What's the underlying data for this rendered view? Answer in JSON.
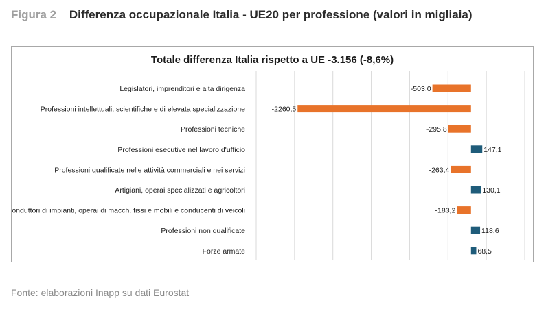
{
  "figure": {
    "label": "Figura 2",
    "title": "Differenza occupazionale Italia - UE20 per professione (valori in migliaia)"
  },
  "source": "Fonte: elaborazioni Inapp su dati Eurostat",
  "colors": {
    "negative": "#E8732A",
    "positive": "#1F5C7A",
    "grid": "#d9d9d9",
    "border": "#a8a8a8"
  },
  "chart_data": {
    "type": "bar",
    "orientation": "horizontal",
    "title": "Totale differenza Italia rispetto a UE -3.156 (-8,6%)",
    "categories": [
      "Legislatori, imprenditori e alta dirigenza",
      "Professioni intellettuali, scientifiche e di elevata specializzazione",
      "Professioni tecniche",
      "Professioni esecutive nel lavoro d'ufficio",
      "Professioni qualificate nelle attività commerciali e nei servizi",
      "Artigiani, operai specializzati e agricoltori",
      "Conduttori di impianti, operai di macch. fissi e mobili e conducenti di veicoli",
      "Professioni non qualificate",
      "Forze armate"
    ],
    "values": [
      -503.0,
      -2260.5,
      -295.8,
      147.1,
      -263.4,
      130.1,
      -183.2,
      118.6,
      68.5
    ],
    "data_labels": [
      "-503,0",
      "-2260,5",
      "-295,8",
      "147,1",
      "-263,4",
      "130,1",
      "-183,2",
      "118,6",
      "68,5"
    ],
    "xlim": [
      -2800,
      700
    ],
    "grid": true,
    "legend": "none"
  }
}
